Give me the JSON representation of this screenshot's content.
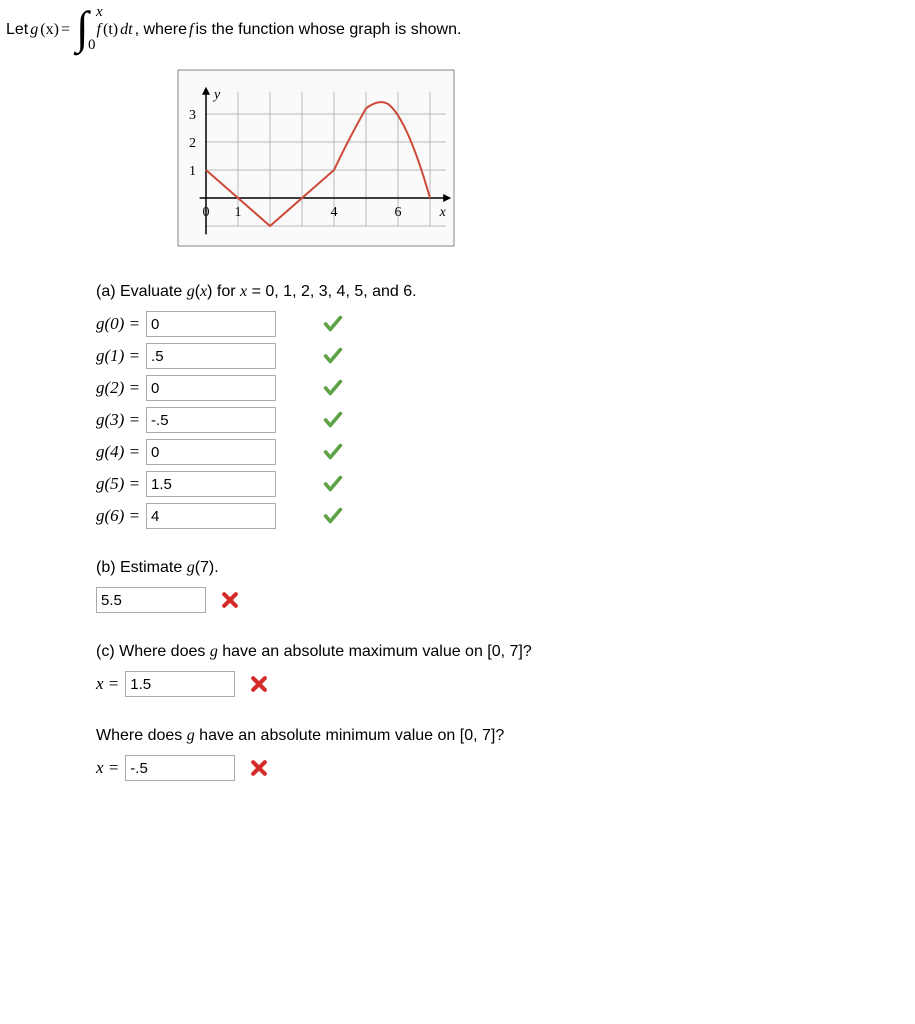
{
  "statement": {
    "prefix": "Let ",
    "gx": "g",
    "gx_arg": "(x)",
    "eq": "= ",
    "int_upper": "x",
    "int_lower": "0",
    "ft": "f",
    "ft_arg": "(t)",
    "dt": " dt",
    "comma_text": ",  where ",
    "f_italic": "f",
    "rest": " is the function whose graph is shown."
  },
  "graph": {
    "y_label": "y",
    "x_label": "x",
    "y_ticks": [
      "3",
      "2",
      "1"
    ],
    "x_ticks": {
      "0": "0",
      "1": "1",
      "4": "4",
      "6": "6"
    },
    "grid_color": "#b8b8b8",
    "curve_color": "#cc4a3a",
    "bg_color": "#fafafa",
    "y_tick_positions": [
      1,
      2,
      3
    ],
    "x_tick_positions": [
      0,
      1,
      4,
      6
    ],
    "curve_points": [
      [
        0,
        1
      ],
      [
        2,
        -1
      ],
      [
        4,
        1
      ],
      [
        5,
        3.2
      ],
      [
        5.5,
        3.35
      ],
      [
        6,
        3
      ],
      [
        7,
        0
      ]
    ]
  },
  "partA": {
    "prompt": "(a) Evaluate g(x) for x = 0, 1, 2, 3, 4, 5, and 6.",
    "rows": [
      {
        "label": "g(0) = ",
        "value": "0",
        "status": "check"
      },
      {
        "label": "g(1) = ",
        "value": ".5",
        "status": "check"
      },
      {
        "label": "g(2) = ",
        "value": "0",
        "status": "check"
      },
      {
        "label": "g(3) = ",
        "value": "-.5",
        "status": "check"
      },
      {
        "label": "g(4) = ",
        "value": "0",
        "status": "check"
      },
      {
        "label": "g(5) = ",
        "value": "1.5",
        "status": "check"
      },
      {
        "label": "g(6) = ",
        "value": "4",
        "status": "check"
      }
    ]
  },
  "partB": {
    "prompt": "(b) Estimate g(7).",
    "value": "5.5",
    "status": "x"
  },
  "partC_max": {
    "prompt": "(c) Where does g have an absolute maximum value on [0, 7]?",
    "label": "x = ",
    "value": "1.5",
    "status": "x"
  },
  "partC_min": {
    "prompt": "Where does g have an absolute minimum value on [0, 7]?",
    "label": "x = ",
    "value": "-.5",
    "status": "x"
  },
  "icons": {
    "check_color": "#5fa446",
    "x_color": "#d52b2b"
  }
}
